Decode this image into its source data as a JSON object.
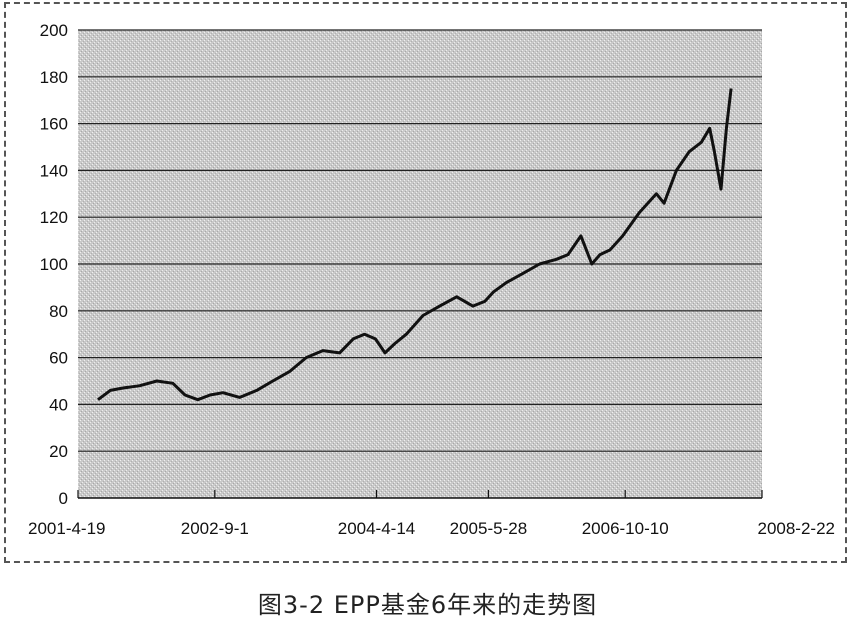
{
  "caption": "图3-2 EPP基金6年来的走势图",
  "chart_data": {
    "type": "line",
    "title": "",
    "xlabel": "",
    "ylabel": "",
    "ylim": [
      0,
      200
    ],
    "yticks": [
      0,
      20,
      40,
      60,
      80,
      100,
      120,
      140,
      160,
      180,
      200
    ],
    "xlim": [
      "2001-04-19",
      "2008-02-22"
    ],
    "xtick_labels": [
      "2001-4-19",
      "2002-9-1",
      "2004-4-14",
      "2005-5-28",
      "2006-10-10",
      "2008-2-22"
    ],
    "xtick_dates": [
      "2001-04-19",
      "2002-09-01",
      "2004-04-14",
      "2005-05-28",
      "2006-10-10",
      "2008-02-22"
    ],
    "grid": "horizontal",
    "legend": "none",
    "colors": {
      "line": "#111111",
      "plot_background": "#c8c8c8",
      "gridline": "#222222"
    },
    "series": [
      {
        "x": [
          "2001-07-01",
          "2001-08-15",
          "2001-10-01",
          "2001-12-01",
          "2002-02-01",
          "2002-04-01",
          "2002-05-15",
          "2002-07-01",
          "2002-08-15",
          "2002-10-01",
          "2002-12-01",
          "2003-02-01",
          "2003-04-01",
          "2003-06-01",
          "2003-08-01",
          "2003-10-01",
          "2003-12-01",
          "2004-01-20",
          "2004-03-01",
          "2004-04-10",
          "2004-05-15",
          "2004-06-20",
          "2004-08-01",
          "2004-10-01",
          "2004-12-01",
          "2005-02-01",
          "2005-04-01",
          "2005-05-15",
          "2005-06-15",
          "2005-08-01",
          "2005-10-01",
          "2005-12-01",
          "2006-02-01",
          "2006-03-15",
          "2006-05-01",
          "2006-06-10",
          "2006-07-10",
          "2006-08-15",
          "2006-10-01",
          "2006-12-01",
          "2007-02-01",
          "2007-03-01",
          "2007-04-15",
          "2007-06-01",
          "2007-07-15",
          "2007-08-15",
          "2007-09-01",
          "2007-09-25",
          "2007-10-15",
          "2007-11-01"
        ],
        "values": [
          42,
          46,
          47,
          48,
          50,
          49,
          44,
          42,
          44,
          45,
          43,
          46,
          50,
          54,
          60,
          63,
          62,
          68,
          70,
          68,
          62,
          66,
          70,
          78,
          82,
          86,
          82,
          84,
          88,
          92,
          96,
          100,
          102,
          104,
          112,
          100,
          104,
          106,
          112,
          122,
          130,
          126,
          140,
          148,
          152,
          158,
          148,
          132,
          158,
          175
        ]
      }
    ]
  }
}
